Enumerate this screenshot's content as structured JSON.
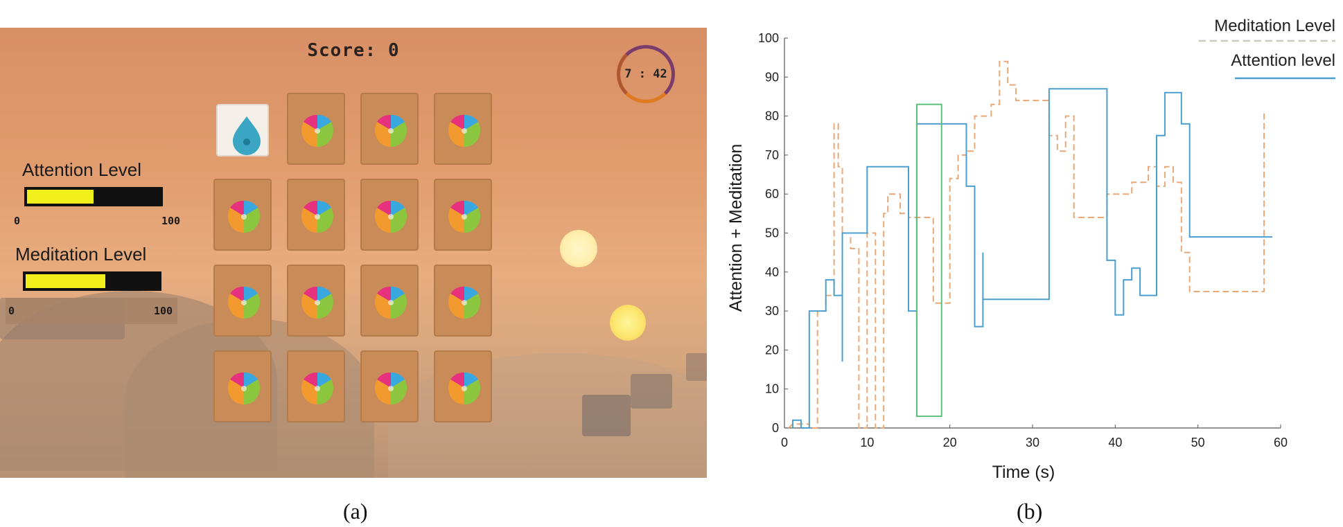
{
  "game": {
    "score": "Score: 0",
    "timer": "7 : 42",
    "attention": {
      "label": "Attention Level",
      "min": "0",
      "max": "100",
      "value": 50
    },
    "meditation": {
      "label": "Meditation Level",
      "min": "0",
      "max": "100",
      "value": 60
    },
    "board": {
      "rows": 4,
      "cols": 4,
      "revealed": [
        {
          "row": 0,
          "col": 0,
          "icon": "water-drop-icon"
        }
      ],
      "card_back_icon": "puzzle-brain-icon"
    }
  },
  "chart_data": {
    "type": "line",
    "xlabel": "Time (s)",
    "ylabel": "Attention + Meditation",
    "xlim": [
      0,
      60
    ],
    "ylim": [
      0,
      100
    ],
    "xticks": [
      0,
      10,
      20,
      30,
      40,
      50,
      60
    ],
    "yticks": [
      0,
      10,
      20,
      30,
      40,
      50,
      60,
      70,
      80,
      90,
      100
    ],
    "grid": false,
    "legend_position": "top-right",
    "series": [
      {
        "name": "Meditation Level",
        "style": "dashed",
        "color": "#e8a878",
        "x": [
          0.5,
          1,
          2,
          3,
          3,
          4,
          4,
          5,
          5,
          6,
          6,
          6.5,
          6.5,
          7,
          7,
          8,
          8,
          9,
          9,
          10,
          10,
          11,
          11,
          12,
          12,
          12.5,
          12.5,
          14,
          14,
          15,
          15,
          16,
          16,
          17,
          17,
          18,
          18,
          19,
          19,
          20,
          20,
          21,
          21,
          22,
          22,
          23,
          23,
          25,
          25,
          26,
          26,
          27,
          27,
          28,
          28,
          30,
          30,
          32,
          32,
          33,
          33,
          34,
          34,
          35,
          35,
          36,
          36,
          39,
          39,
          40,
          40,
          42,
          42,
          44,
          44,
          45,
          45,
          46,
          46,
          47,
          47,
          48,
          48,
          49,
          49,
          50,
          50,
          58,
          58
        ],
        "y": [
          0,
          1,
          1,
          1,
          0,
          0,
          30,
          30,
          34,
          34,
          78,
          78,
          67,
          67,
          50,
          50,
          46,
          46,
          0,
          0,
          50,
          50,
          0,
          0,
          55,
          55,
          60,
          60,
          55,
          55,
          54,
          54,
          54,
          54,
          54,
          54,
          32,
          32,
          32,
          32,
          64,
          64,
          70,
          70,
          71,
          71,
          80,
          80,
          83,
          83,
          94,
          94,
          88,
          88,
          84,
          84,
          84,
          84,
          75,
          75,
          71,
          71,
          80,
          80,
          54,
          54,
          54,
          54,
          60,
          60,
          60,
          60,
          63,
          63,
          67,
          67,
          62,
          62,
          67,
          67,
          63,
          63,
          45,
          45,
          35,
          35,
          35,
          35,
          81
        ]
      },
      {
        "name": "Attention level",
        "style": "solid",
        "color": "#4a9fd0",
        "x": [
          1,
          1,
          2,
          2,
          3,
          3,
          5,
          5,
          6,
          6,
          7,
          7,
          7,
          8,
          8,
          9,
          9,
          10,
          10,
          15,
          15,
          16,
          16,
          16,
          16,
          22,
          22,
          23,
          23,
          23,
          24,
          24,
          24,
          32,
          32,
          39,
          39,
          40,
          40,
          41,
          41,
          42,
          42,
          43,
          43,
          45,
          45,
          46,
          46,
          48,
          48,
          49,
          49,
          59
        ],
        "y": [
          0,
          2,
          2,
          0,
          0,
          30,
          30,
          38,
          38,
          34,
          34,
          17,
          50,
          50,
          50,
          50,
          50,
          50,
          67,
          67,
          30,
          30,
          26,
          26,
          78,
          78,
          62,
          62,
          60,
          26,
          26,
          45,
          33,
          33,
          87,
          87,
          43,
          43,
          29,
          29,
          38,
          38,
          41,
          41,
          34,
          34,
          75,
          75,
          86,
          86,
          78,
          78,
          49,
          49
        ]
      }
    ],
    "annotations": [
      {
        "type": "rectangle",
        "color": "#5cbf7a",
        "x": [
          16,
          19
        ],
        "y": [
          3,
          83
        ]
      }
    ]
  },
  "captions": {
    "a": "(a)",
    "b": "(b)"
  }
}
